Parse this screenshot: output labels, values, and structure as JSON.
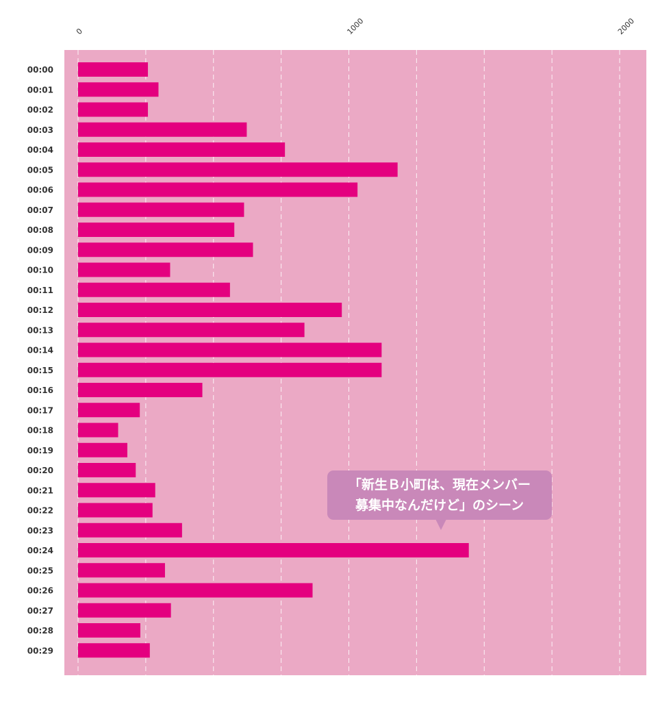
{
  "chart_data": {
    "type": "bar",
    "orientation": "horizontal",
    "categories": [
      "00:00",
      "00:01",
      "00:02",
      "00:03",
      "00:04",
      "00:05",
      "00:06",
      "00:07",
      "00:08",
      "00:09",
      "00:10",
      "00:11",
      "00:12",
      "00:13",
      "00:14",
      "00:15",
      "00:16",
      "00:17",
      "00:18",
      "00:19",
      "00:20",
      "00:21",
      "00:22",
      "00:23",
      "00:24",
      "00:25",
      "00:26",
      "00:27",
      "00:28",
      "00:29"
    ],
    "values": [
      258,
      297,
      258,
      623,
      764,
      1180,
      1032,
      613,
      577,
      646,
      340,
      561,
      974,
      836,
      1121,
      1121,
      459,
      228,
      148,
      182,
      213,
      285,
      275,
      384,
      1443,
      321,
      866,
      343,
      230,
      265
    ],
    "xlim": [
      0,
      2100
    ],
    "ticks": [
      0,
      1000,
      2000
    ],
    "grid": true,
    "title": "",
    "xlabel": "",
    "ylabel": "",
    "colors": {
      "plot_background": "#eba9c5",
      "bar": "#e4007f",
      "grid": "#ffffff",
      "callout": "#c988b9"
    },
    "annotation": {
      "lines": [
        "「新生Ｂ小町は、現在メンバー",
        "募集中なんだけど」のシーン"
      ],
      "category": "00:24"
    }
  }
}
